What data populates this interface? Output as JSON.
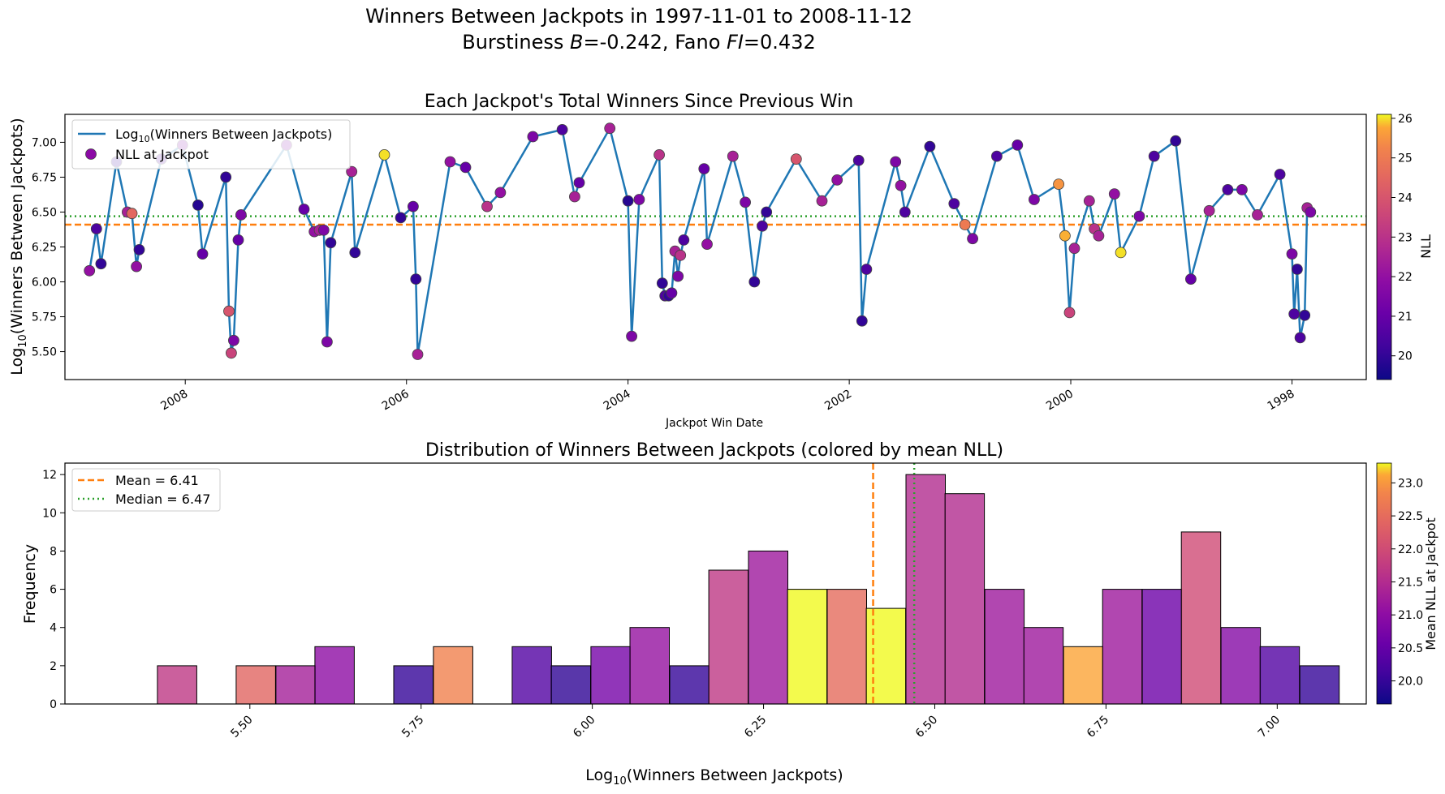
{
  "suptitle": {
    "line1": "Winners Between Jackpots in 1997-11-01 to 2008-11-12",
    "line2_prefix": "Burstiness ",
    "b_symbol": "B",
    "b_value": "=-0.242, Fano ",
    "fi_symbol": "FI",
    "fi_value": "=0.432"
  },
  "colors": {
    "line": "#1f77b4",
    "mean": "#ff7f0e",
    "median": "#2ca02c",
    "colormap": "plasma"
  },
  "chart_data": [
    {
      "type": "line",
      "title": "Each Jackpot's Total Winners Since Previous Win",
      "xlabel": "Jackpot Win Date",
      "ylabel_pre": "Log",
      "ylabel_sub": "10",
      "ylabel_post": "(Winners Between Jackpots)",
      "x_axis": "dates, reversed (newest on left)",
      "xlim": [
        "2009-02-01",
        "1997-05-01"
      ],
      "ylim": [
        5.3,
        7.2
      ],
      "yticks": [
        5.5,
        5.75,
        6.0,
        6.25,
        6.5,
        6.75,
        7.0
      ],
      "ytick_labels": [
        "5.50",
        "5.75",
        "6.00",
        "6.25",
        "6.50",
        "6.75",
        "7.00"
      ],
      "xticks": [
        "2008-01-01",
        "2006-01-01",
        "2004-01-01",
        "2002-01-01",
        "2000-01-01",
        "1998-01-01"
      ],
      "xtick_labels": [
        "2008",
        "2006",
        "2004",
        "2002",
        "2000",
        "1998"
      ],
      "mean": 6.41,
      "median": 6.47,
      "grid": false,
      "legend_position": "top-left",
      "legend": {
        "line_pre": "Log",
        "line_sub": "10",
        "line_post": "(Winners Between Jackpots)",
        "scatter": "NLL at Jackpot"
      },
      "colorbar": {
        "label": "NLL",
        "min": 19.4,
        "max": 26.1,
        "ticks": [
          20,
          21,
          22,
          23,
          24,
          25,
          26
        ]
      },
      "series": [
        {
          "points": [
            {
              "date": "2008-11-12",
              "y": 6.08,
              "nll": 22.0
            },
            {
              "date": "2008-10-20",
              "y": 6.38,
              "nll": 20.5
            },
            {
              "date": "2008-10-05",
              "y": 6.13,
              "nll": 20.0
            },
            {
              "date": "2008-08-15",
              "y": 6.86,
              "nll": 20.0
            },
            {
              "date": "2008-07-10",
              "y": 6.5,
              "nll": 22.5
            },
            {
              "date": "2008-06-25",
              "y": 6.49,
              "nll": 24.5
            },
            {
              "date": "2008-06-10",
              "y": 6.11,
              "nll": 22.0
            },
            {
              "date": "2008-06-01",
              "y": 6.23,
              "nll": 20.0
            },
            {
              "date": "2008-03-20",
              "y": 6.88,
              "nll": 20.5
            },
            {
              "date": "2008-01-10",
              "y": 6.98,
              "nll": 21.5
            },
            {
              "date": "2007-11-20",
              "y": 6.55,
              "nll": 19.8
            },
            {
              "date": "2007-11-05",
              "y": 6.2,
              "nll": 21.0
            },
            {
              "date": "2007-08-20",
              "y": 6.75,
              "nll": 20.0
            },
            {
              "date": "2007-08-10",
              "y": 5.79,
              "nll": 24.0
            },
            {
              "date": "2007-08-02",
              "y": 5.49,
              "nll": 23.5
            },
            {
              "date": "2007-07-25",
              "y": 5.58,
              "nll": 21.5
            },
            {
              "date": "2007-07-10",
              "y": 6.3,
              "nll": 21.0
            },
            {
              "date": "2007-07-01",
              "y": 6.48,
              "nll": 21.5
            },
            {
              "date": "2007-02-01",
              "y": 6.98,
              "nll": 21.5
            },
            {
              "date": "2006-12-05",
              "y": 6.52,
              "nll": 21.0
            },
            {
              "date": "2006-11-01",
              "y": 6.36,
              "nll": 22.0
            },
            {
              "date": "2006-10-15",
              "y": 6.37,
              "nll": 22.5
            },
            {
              "date": "2006-10-01",
              "y": 6.37,
              "nll": 21.5
            },
            {
              "date": "2006-09-20",
              "y": 5.57,
              "nll": 21.5
            },
            {
              "date": "2006-09-08",
              "y": 6.28,
              "nll": 20.0
            },
            {
              "date": "2006-07-01",
              "y": 6.79,
              "nll": 22.5
            },
            {
              "date": "2006-06-20",
              "y": 6.21,
              "nll": 20.0
            },
            {
              "date": "2006-03-15",
              "y": 6.91,
              "nll": 26.0
            },
            {
              "date": "2006-01-20",
              "y": 6.46,
              "nll": 20.0
            },
            {
              "date": "2005-12-10",
              "y": 6.54,
              "nll": 21.0
            },
            {
              "date": "2005-12-01",
              "y": 6.02,
              "nll": 20.0
            },
            {
              "date": "2005-11-25",
              "y": 5.48,
              "nll": 22.5
            },
            {
              "date": "2005-08-10",
              "y": 6.86,
              "nll": 22.0
            },
            {
              "date": "2005-06-20",
              "y": 6.82,
              "nll": 21.0
            },
            {
              "date": "2005-04-10",
              "y": 6.54,
              "nll": 23.0
            },
            {
              "date": "2005-02-25",
              "y": 6.64,
              "nll": 22.0
            },
            {
              "date": "2004-11-10",
              "y": 7.04,
              "nll": 21.5
            },
            {
              "date": "2004-08-05",
              "y": 7.09,
              "nll": 20.5
            },
            {
              "date": "2004-06-25",
              "y": 6.61,
              "nll": 22.5
            },
            {
              "date": "2004-06-10",
              "y": 6.71,
              "nll": 21.0
            },
            {
              "date": "2004-03-01",
              "y": 7.1,
              "nll": 22.5
            },
            {
              "date": "2004-01-01",
              "y": 6.58,
              "nll": 19.8
            },
            {
              "date": "2003-12-20",
              "y": 5.61,
              "nll": 21.5
            },
            {
              "date": "2003-11-25",
              "y": 6.59,
              "nll": 21.5
            },
            {
              "date": "2003-09-20",
              "y": 6.91,
              "nll": 23.0
            },
            {
              "date": "2003-09-10",
              "y": 5.99,
              "nll": 20.0
            },
            {
              "date": "2003-09-01",
              "y": 5.9,
              "nll": 20.5
            },
            {
              "date": "2003-08-20",
              "y": 5.9,
              "nll": 20.0
            },
            {
              "date": "2003-08-10",
              "y": 5.92,
              "nll": 21.0
            },
            {
              "date": "2003-07-30",
              "y": 6.22,
              "nll": 22.5
            },
            {
              "date": "2003-07-20",
              "y": 6.04,
              "nll": 21.5
            },
            {
              "date": "2003-07-12",
              "y": 6.19,
              "nll": 23.0
            },
            {
              "date": "2003-07-01",
              "y": 6.3,
              "nll": 20.5
            },
            {
              "date": "2003-04-25",
              "y": 6.81,
              "nll": 21.0
            },
            {
              "date": "2003-04-15",
              "y": 6.27,
              "nll": 22.0
            },
            {
              "date": "2003-01-20",
              "y": 6.9,
              "nll": 22.5
            },
            {
              "date": "2002-12-10",
              "y": 6.57,
              "nll": 21.5
            },
            {
              "date": "2002-11-10",
              "y": 6.0,
              "nll": 20.0
            },
            {
              "date": "2002-10-15",
              "y": 6.4,
              "nll": 20.5
            },
            {
              "date": "2002-10-01",
              "y": 6.5,
              "nll": 20.0
            },
            {
              "date": "2002-06-25",
              "y": 6.88,
              "nll": 24.0
            },
            {
              "date": "2002-04-01",
              "y": 6.58,
              "nll": 22.5
            },
            {
              "date": "2002-02-10",
              "y": 6.73,
              "nll": 22.0
            },
            {
              "date": "2001-12-01",
              "y": 6.87,
              "nll": 20.5
            },
            {
              "date": "2001-11-20",
              "y": 5.72,
              "nll": 20.0
            },
            {
              "date": "2001-11-05",
              "y": 6.09,
              "nll": 20.5
            },
            {
              "date": "2001-08-01",
              "y": 6.86,
              "nll": 21.5
            },
            {
              "date": "2001-07-15",
              "y": 6.69,
              "nll": 22.0
            },
            {
              "date": "2001-07-01",
              "y": 6.5,
              "nll": 20.5
            },
            {
              "date": "2001-04-10",
              "y": 6.97,
              "nll": 20.0
            },
            {
              "date": "2001-01-20",
              "y": 6.56,
              "nll": 20.5
            },
            {
              "date": "2000-12-15",
              "y": 6.41,
              "nll": 25.0
            },
            {
              "date": "2000-11-20",
              "y": 6.31,
              "nll": 21.5
            },
            {
              "date": "2000-09-01",
              "y": 6.9,
              "nll": 20.5
            },
            {
              "date": "2000-06-25",
              "y": 6.98,
              "nll": 21.0
            },
            {
              "date": "2000-05-01",
              "y": 6.59,
              "nll": 21.5
            },
            {
              "date": "2000-02-10",
              "y": 6.7,
              "nll": 25.5
            },
            {
              "date": "2000-01-20",
              "y": 6.33,
              "nll": 25.8
            },
            {
              "date": "2000-01-05",
              "y": 5.78,
              "nll": 23.5
            },
            {
              "date": "1999-12-20",
              "y": 6.24,
              "nll": 22.5
            },
            {
              "date": "1999-11-01",
              "y": 6.58,
              "nll": 22.5
            },
            {
              "date": "1999-10-15",
              "y": 6.38,
              "nll": 23.0
            },
            {
              "date": "1999-10-01",
              "y": 6.33,
              "nll": 22.5
            },
            {
              "date": "1999-08-10",
              "y": 6.63,
              "nll": 22.0
            },
            {
              "date": "1999-07-20",
              "y": 6.21,
              "nll": 26.0
            },
            {
              "date": "1999-05-20",
              "y": 6.47,
              "nll": 21.5
            },
            {
              "date": "1999-04-01",
              "y": 6.9,
              "nll": 20.5
            },
            {
              "date": "1999-01-20",
              "y": 7.01,
              "nll": 20.0
            },
            {
              "date": "1998-12-01",
              "y": 6.02,
              "nll": 21.0
            },
            {
              "date": "1998-10-01",
              "y": 6.51,
              "nll": 22.5
            },
            {
              "date": "1998-08-01",
              "y": 6.66,
              "nll": 20.5
            },
            {
              "date": "1998-06-15",
              "y": 6.66,
              "nll": 21.5
            },
            {
              "date": "1998-04-25",
              "y": 6.48,
              "nll": 22.5
            },
            {
              "date": "1998-02-10",
              "y": 6.77,
              "nll": 20.5
            },
            {
              "date": "1998-01-01",
              "y": 6.2,
              "nll": 21.5
            },
            {
              "date": "1997-12-25",
              "y": 5.77,
              "nll": 20.5
            },
            {
              "date": "1997-12-15",
              "y": 6.09,
              "nll": 20.0
            },
            {
              "date": "1997-12-05",
              "y": 5.6,
              "nll": 20.5
            },
            {
              "date": "1997-11-20",
              "y": 5.76,
              "nll": 20.0
            },
            {
              "date": "1997-11-12",
              "y": 6.53,
              "nll": 22.5
            },
            {
              "date": "1997-11-01",
              "y": 6.5,
              "nll": 21.5
            }
          ]
        }
      ]
    },
    {
      "type": "bar",
      "title": "Distribution of Winners Between Jackpots (colored by mean NLL)",
      "xlabel_pre": "Log",
      "xlabel_sub": "10",
      "xlabel_post": "(Winners Between Jackpots)",
      "ylabel": "Frequency",
      "xlim": [
        5.23,
        7.13
      ],
      "ylim": [
        0,
        12.6
      ],
      "xticks": [
        5.5,
        5.75,
        6.0,
        6.25,
        6.5,
        6.75,
        7.0
      ],
      "xtick_labels": [
        "5.50",
        "5.75",
        "6.00",
        "6.25",
        "6.50",
        "6.75",
        "7.00"
      ],
      "yticks": [
        0,
        2,
        4,
        6,
        8,
        10,
        12
      ],
      "bin_width": 0.0575,
      "legend_position": "top-left",
      "legend": {
        "mean": "Mean = 6.41",
        "median": "Median = 6.47"
      },
      "mean": 6.41,
      "median": 6.47,
      "colorbar": {
        "label": "Mean NLL at Jackpot",
        "min": 19.65,
        "max": 23.3,
        "ticks": [
          20.0,
          20.5,
          21.0,
          21.5,
          22.0,
          22.5,
          23.0
        ],
        "tick_labels": [
          "20.0",
          "20.5",
          "21.0",
          "21.5",
          "22.0",
          "22.5",
          "23.0"
        ]
      },
      "bins": [
        {
          "left": 5.365,
          "count": 2,
          "mean_nll": 21.7
        },
        {
          "left": 5.48,
          "count": 2,
          "mean_nll": 22.4
        },
        {
          "left": 5.538,
          "count": 2,
          "mean_nll": 21.3
        },
        {
          "left": 5.595,
          "count": 3,
          "mean_nll": 21.0
        },
        {
          "left": 5.71,
          "count": 2,
          "mean_nll": 20.0
        },
        {
          "left": 5.768,
          "count": 3,
          "mean_nll": 22.8
        },
        {
          "left": 5.883,
          "count": 3,
          "mean_nll": 20.3
        },
        {
          "left": 5.94,
          "count": 2,
          "mean_nll": 19.95
        },
        {
          "left": 5.998,
          "count": 3,
          "mean_nll": 20.7
        },
        {
          "left": 6.055,
          "count": 4,
          "mean_nll": 21.1
        },
        {
          "left": 6.113,
          "count": 2,
          "mean_nll": 20.0
        },
        {
          "left": 6.17,
          "count": 7,
          "mean_nll": 21.7
        },
        {
          "left": 6.228,
          "count": 8,
          "mean_nll": 21.2
        },
        {
          "left": 6.285,
          "count": 6,
          "mean_nll": 23.3
        },
        {
          "left": 6.343,
          "count": 6,
          "mean_nll": 22.5
        },
        {
          "left": 6.4,
          "count": 5,
          "mean_nll": 23.3
        },
        {
          "left": 6.458,
          "count": 12,
          "mean_nll": 21.5
        },
        {
          "left": 6.515,
          "count": 11,
          "mean_nll": 21.5
        },
        {
          "left": 6.573,
          "count": 6,
          "mean_nll": 21.2
        },
        {
          "left": 6.63,
          "count": 4,
          "mean_nll": 21.2
        },
        {
          "left": 6.688,
          "count": 3,
          "mean_nll": 23.1
        },
        {
          "left": 6.745,
          "count": 6,
          "mean_nll": 21.2
        },
        {
          "left": 6.803,
          "count": 6,
          "mean_nll": 20.6
        },
        {
          "left": 6.86,
          "count": 9,
          "mean_nll": 22.0
        },
        {
          "left": 6.918,
          "count": 4,
          "mean_nll": 20.9
        },
        {
          "left": 6.975,
          "count": 3,
          "mean_nll": 20.3
        },
        {
          "left": 7.033,
          "count": 2,
          "mean_nll": 20.0
        }
      ]
    }
  ]
}
